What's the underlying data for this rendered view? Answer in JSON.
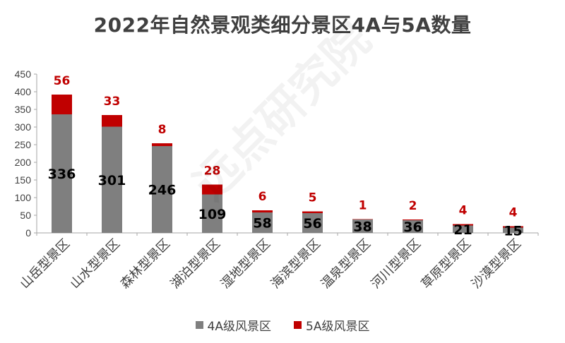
{
  "chart_data": {
    "type": "bar",
    "stacked": true,
    "title": "2022年自然景观类细分景区4A与5A数量",
    "categories": [
      "山岳型景区",
      "山水型景区",
      "森林型景区",
      "湖泊型景区",
      "湿地型景区",
      "海滨型景区",
      "温泉型景区",
      "河川型景区",
      "草原型景区",
      "沙漠型景区"
    ],
    "series": [
      {
        "name": "4A级风景区",
        "values": [
          336,
          301,
          246,
          109,
          58,
          56,
          38,
          36,
          21,
          15
        ],
        "color": "#7f7f7f",
        "label_color": "#000000"
      },
      {
        "name": "5A级风景区",
        "values": [
          56,
          33,
          8,
          28,
          6,
          5,
          1,
          2,
          4,
          4
        ],
        "color": "#c00000",
        "label_color": "#c00000"
      }
    ],
    "ylim": [
      0,
      450
    ],
    "yticks": [
      0,
      50,
      100,
      150,
      200,
      250,
      300,
      350,
      400,
      450
    ],
    "grid": false,
    "legend_position": "bottom"
  },
  "watermark": "远点研究院"
}
